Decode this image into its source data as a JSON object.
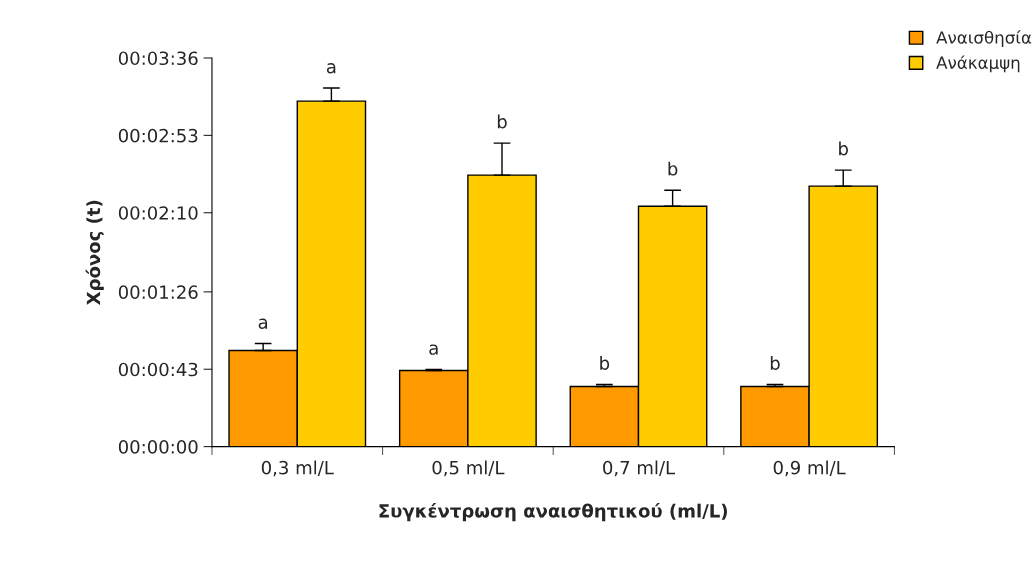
{
  "chart_data": {
    "type": "bar",
    "xlabel": "Συγκέντρωση αναισθητικού (ml/L)",
    "ylabel": "Χρόνος (t)",
    "categories": [
      "0,3 ml/L",
      "0,5 ml/L",
      "0,7 ml/L",
      "0,9 ml/L"
    ],
    "series": [
      {
        "name": "Αναισθησία",
        "color": "#ff9900",
        "values": [
          53.4,
          42.3,
          33.4,
          33.4
        ],
        "errors": [
          [
            53.4,
            57.3
          ],
          [
            42.3,
            42.9
          ],
          [
            33.4,
            34.5
          ],
          [
            33.4,
            34.5
          ]
        ],
        "value_labels": [
          "a",
          "a",
          "b",
          "b"
        ]
      },
      {
        "name": "Ανάκαμψη",
        "color": "#ffcc00",
        "values": [
          192,
          150.9,
          133.6,
          144.8
        ],
        "errors": [
          [
            192,
            199.3
          ],
          [
            150.9,
            168.7
          ],
          [
            133.6,
            142.5
          ],
          [
            144.8,
            153.7
          ]
        ],
        "value_labels": [
          "a",
          "b",
          "b",
          "b"
        ]
      }
    ],
    "ylim": [
      0,
      216
    ],
    "yticks": [
      {
        "value": 0,
        "label": "00:00:00"
      },
      {
        "value": 43,
        "label": "00:00:43"
      },
      {
        "value": 86,
        "label": "00:01:26"
      },
      {
        "value": 130,
        "label": "00:02:10"
      },
      {
        "value": 173,
        "label": "00:02:53"
      },
      {
        "value": 216,
        "label": "00:03:36"
      }
    ],
    "grid": false,
    "legend": "top right"
  }
}
